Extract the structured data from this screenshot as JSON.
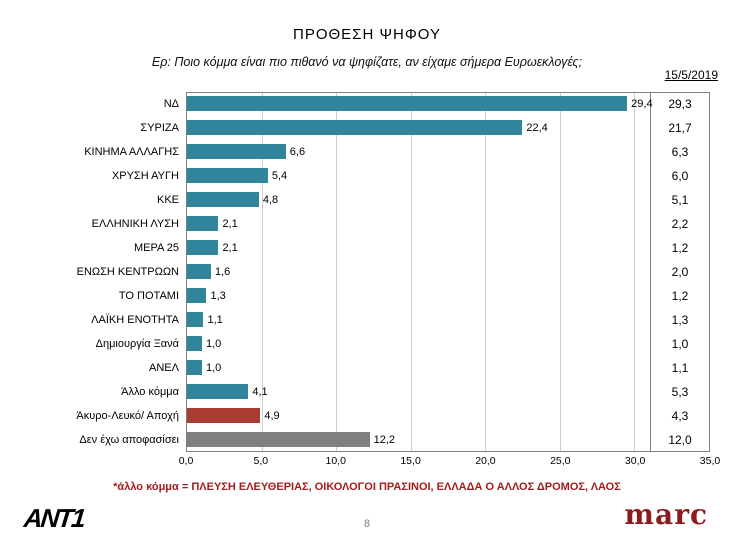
{
  "header": {
    "title": "ΠΡΟΘΕΣΗ ΨΗΦΟΥ",
    "subtitle": "Ερ: Ποιο κόμμα είναι πιο πιθανό να ψηφίζατε, αν είχαμε σήμερα Ευρωεκλογές;",
    "date": "15/5/2019"
  },
  "chart_data": {
    "type": "bar",
    "orientation": "horizontal",
    "title": "ΠΡΟΘΕΣΗ ΨΗΦΟΥ",
    "xlim": [
      0,
      35
    ],
    "x_ticks": [
      "0,0",
      "5,0",
      "10,0",
      "15,0",
      "20,0",
      "25,0",
      "30,0",
      "35,0"
    ],
    "grid": true,
    "legend": "none",
    "colors": {
      "party_bar": "#31869B",
      "invalid_abstain_bar": "#A93B32",
      "undecided_bar": "#7F7F7F"
    },
    "rows": [
      {
        "label": "ΝΔ",
        "value": 29.4,
        "value_label": "29,4",
        "prev_label": "29,3",
        "color": "#31869B"
      },
      {
        "label": "ΣΥΡΙΖΑ",
        "value": 22.4,
        "value_label": "22,4",
        "prev_label": "21,7",
        "color": "#31869B"
      },
      {
        "label": "ΚΙΝΗΜΑ ΑΛΛΑΓΗΣ",
        "value": 6.6,
        "value_label": "6,6",
        "prev_label": "6,3",
        "color": "#31869B"
      },
      {
        "label": "ΧΡΥΣΗ ΑΥΓΗ",
        "value": 5.4,
        "value_label": "5,4",
        "prev_label": "6,0",
        "color": "#31869B"
      },
      {
        "label": "ΚΚΕ",
        "value": 4.8,
        "value_label": "4,8",
        "prev_label": "5,1",
        "color": "#31869B"
      },
      {
        "label": "ΕΛΛΗΝΙΚΗ ΛΥΣΗ",
        "value": 2.1,
        "value_label": "2,1",
        "prev_label": "2,2",
        "color": "#31869B"
      },
      {
        "label": "ΜΕΡΑ 25",
        "value": 2.1,
        "value_label": "2,1",
        "prev_label": "1,2",
        "color": "#31869B"
      },
      {
        "label": "ΕΝΩΣΗ ΚΕΝΤΡΩΩΝ",
        "value": 1.6,
        "value_label": "1,6",
        "prev_label": "2,0",
        "color": "#31869B"
      },
      {
        "label": "ΤΟ ΠΟΤΑΜΙ",
        "value": 1.3,
        "value_label": "1,3",
        "prev_label": "1,2",
        "color": "#31869B"
      },
      {
        "label": "ΛΑΪΚΗ ΕΝΟΤΗΤΑ",
        "value": 1.1,
        "value_label": "1,1",
        "prev_label": "1,3",
        "color": "#31869B"
      },
      {
        "label": "Δημιουργία Ξανά",
        "value": 1.0,
        "value_label": "1,0",
        "prev_label": "1,0",
        "color": "#31869B"
      },
      {
        "label": "ΑΝΕΛ",
        "value": 1.0,
        "value_label": "1,0",
        "prev_label": "1,1",
        "color": "#31869B"
      },
      {
        "label": "Άλλο κόμμα",
        "value": 4.1,
        "value_label": "4,1",
        "prev_label": "5,3",
        "color": "#31869B"
      },
      {
        "label": "Άκυρο-Λευκό/ Αποχή",
        "value": 4.9,
        "value_label": "4,9",
        "prev_label": "4,3",
        "color": "#A93B32"
      },
      {
        "label": "Δεν έχω αποφασίσει",
        "value": 12.2,
        "value_label": "12,2",
        "prev_label": "12,0",
        "color": "#7F7F7F"
      }
    ]
  },
  "footer": {
    "note": "*άλλο κόμμα = ΠΛΕΥΣΗ ΕΛΕΥΘΕΡΙΑΣ, ΟΙΚΟΛΟΓΟΙ ΠΡΑΣΙΝΟΙ, ΕΛΛΑΔΑ Ο ΑΛΛΟΣ ΔΡΟΜΟΣ, ΛΑΟΣ",
    "page": "8",
    "brand": "marc",
    "ant1": "ANT1"
  }
}
